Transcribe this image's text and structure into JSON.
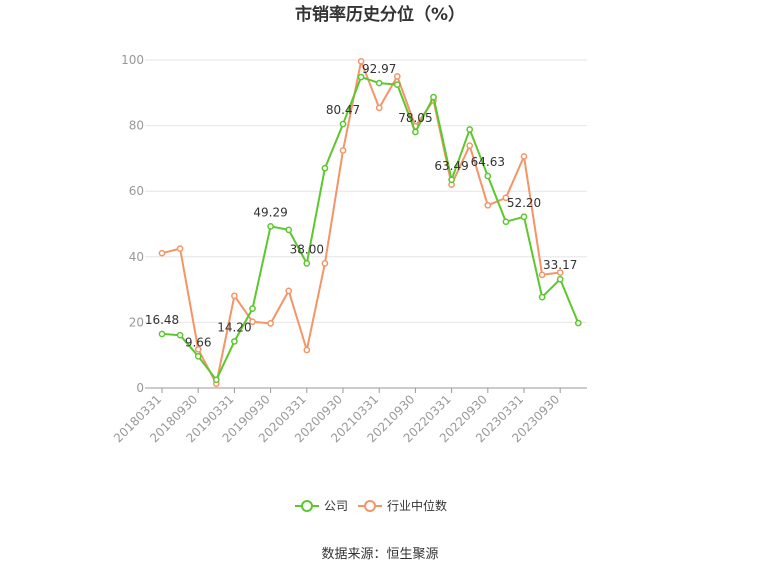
{
  "chart_data": {
    "type": "line",
    "title": "市销率历史分位（%）",
    "ylim": [
      0,
      100
    ],
    "yticks": [
      0,
      20,
      40,
      60,
      80,
      100
    ],
    "grid": true,
    "legend_position": "bottom",
    "x": [
      "20180331",
      "20180630",
      "20180930",
      "20181231",
      "20190331",
      "20190630",
      "20190930",
      "20191231",
      "20200331",
      "20200630",
      "20200930",
      "20201231",
      "20210331",
      "20210630",
      "20210930",
      "20211231",
      "20220331",
      "20220630",
      "20220930",
      "20221231",
      "20230331",
      "20230630",
      "20230930",
      "20231231"
    ],
    "xtick_labels": [
      "20180331",
      "20180930",
      "20190331",
      "20190930",
      "20200331",
      "20200930",
      "20210331",
      "20210930",
      "20220331",
      "20220930",
      "20230331",
      "20230930"
    ],
    "series": [
      {
        "name": "公司",
        "color": "#5cc72e",
        "values": [
          16.48,
          16.1,
          9.66,
          2.5,
          14.2,
          24.2,
          49.29,
          48.2,
          38.0,
          67.0,
          80.47,
          94.8,
          92.97,
          92.5,
          78.05,
          88.7,
          63.49,
          78.8,
          64.63,
          50.7,
          52.2,
          27.7,
          33.17,
          19.8
        ],
        "labels": {
          "0": "16.48",
          "2": "9.66",
          "4": "14.20",
          "6": "49.29",
          "8": "38.00",
          "10": "80.47",
          "12": "92.97",
          "14": "78.05",
          "16": "63.49",
          "18": "64.63",
          "20": "52.20",
          "22": "33.17"
        }
      },
      {
        "name": "行业中位数",
        "color": "#f59467",
        "values": [
          41.1,
          42.5,
          11.8,
          1.3,
          28.1,
          20.2,
          19.7,
          29.6,
          11.6,
          38.0,
          72.4,
          99.6,
          85.4,
          95.0,
          79.8,
          87.7,
          62.0,
          73.9,
          55.7,
          58.0,
          70.6,
          34.5,
          35.2,
          null
        ]
      }
    ]
  },
  "source": "数据来源：恒生聚源"
}
